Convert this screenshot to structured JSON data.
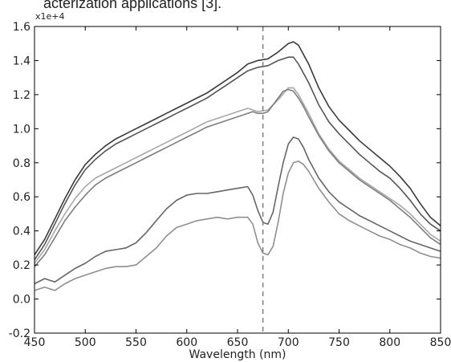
{
  "caption_fragment": "acterization applications [3].",
  "chart_data": {
    "type": "line",
    "title": "",
    "xlabel": "Wavelength (nm)",
    "ylabel": "",
    "y_offset_label": "x1e+4",
    "xlim": [
      450,
      850
    ],
    "ylim": [
      -0.2,
      1.6
    ],
    "x_ticks": [
      "450",
      "500",
      "550",
      "600",
      "650",
      "700",
      "750",
      "800",
      "850"
    ],
    "y_ticks": [
      "-0.2",
      "0.0",
      "0.2",
      "0.4",
      "0.6",
      "0.8",
      "1.0",
      "1.2",
      "1.4",
      "1.6"
    ],
    "vline": 675,
    "series": [
      {
        "color": "#3a3a3a",
        "x": [
          450,
          460,
          470,
          480,
          490,
          500,
          510,
          520,
          530,
          540,
          550,
          560,
          570,
          580,
          590,
          600,
          610,
          620,
          630,
          640,
          650,
          660,
          670,
          680,
          690,
          700,
          705,
          710,
          720,
          730,
          740,
          750,
          760,
          770,
          780,
          790,
          800,
          810,
          820,
          830,
          840,
          850
        ],
        "y": [
          0.26,
          0.35,
          0.47,
          0.59,
          0.7,
          0.79,
          0.85,
          0.9,
          0.94,
          0.97,
          1.0,
          1.03,
          1.06,
          1.09,
          1.12,
          1.15,
          1.18,
          1.21,
          1.25,
          1.29,
          1.33,
          1.38,
          1.4,
          1.41,
          1.45,
          1.5,
          1.51,
          1.49,
          1.38,
          1.24,
          1.13,
          1.05,
          0.99,
          0.93,
          0.88,
          0.83,
          0.78,
          0.72,
          0.65,
          0.56,
          0.48,
          0.43
        ]
      },
      {
        "color": "#555555",
        "x": [
          450,
          460,
          470,
          480,
          490,
          500,
          510,
          520,
          530,
          540,
          550,
          560,
          570,
          580,
          590,
          600,
          610,
          620,
          630,
          640,
          650,
          660,
          670,
          680,
          690,
          700,
          705,
          710,
          720,
          730,
          740,
          750,
          760,
          770,
          780,
          790,
          800,
          810,
          820,
          830,
          840,
          850
        ],
        "y": [
          0.23,
          0.32,
          0.44,
          0.56,
          0.67,
          0.76,
          0.82,
          0.87,
          0.91,
          0.94,
          0.97,
          1.0,
          1.03,
          1.06,
          1.09,
          1.12,
          1.15,
          1.18,
          1.22,
          1.26,
          1.3,
          1.34,
          1.36,
          1.37,
          1.4,
          1.42,
          1.42,
          1.38,
          1.27,
          1.14,
          1.04,
          0.97,
          0.91,
          0.85,
          0.8,
          0.75,
          0.71,
          0.65,
          0.58,
          0.5,
          0.44,
          0.4
        ]
      },
      {
        "color": "#a8a8a8",
        "x": [
          450,
          460,
          470,
          480,
          490,
          500,
          510,
          520,
          530,
          540,
          550,
          560,
          570,
          580,
          590,
          600,
          610,
          620,
          630,
          640,
          650,
          660,
          670,
          680,
          690,
          700,
          705,
          710,
          720,
          730,
          740,
          750,
          760,
          770,
          780,
          790,
          800,
          810,
          820,
          830,
          840,
          850
        ],
        "y": [
          0.21,
          0.29,
          0.4,
          0.5,
          0.59,
          0.66,
          0.71,
          0.74,
          0.77,
          0.8,
          0.83,
          0.86,
          0.89,
          0.92,
          0.95,
          0.98,
          1.01,
          1.04,
          1.06,
          1.08,
          1.1,
          1.12,
          1.1,
          1.11,
          1.17,
          1.24,
          1.24,
          1.2,
          1.09,
          0.97,
          0.88,
          0.81,
          0.76,
          0.71,
          0.67,
          0.63,
          0.59,
          0.55,
          0.5,
          0.44,
          0.38,
          0.34
        ]
      },
      {
        "color": "#7e7e7e",
        "x": [
          450,
          460,
          470,
          480,
          490,
          500,
          510,
          520,
          530,
          540,
          550,
          560,
          570,
          580,
          590,
          600,
          610,
          620,
          630,
          640,
          650,
          660,
          665,
          670,
          675,
          680,
          685,
          690,
          695,
          700,
          705,
          710,
          715,
          720,
          730,
          740,
          750,
          760,
          770,
          780,
          790,
          800,
          810,
          820,
          830,
          840,
          850
        ],
        "y": [
          0.19,
          0.26,
          0.36,
          0.46,
          0.54,
          0.61,
          0.67,
          0.71,
          0.74,
          0.77,
          0.8,
          0.83,
          0.86,
          0.89,
          0.92,
          0.95,
          0.98,
          1.01,
          1.03,
          1.05,
          1.07,
          1.09,
          1.1,
          1.09,
          1.09,
          1.1,
          1.14,
          1.18,
          1.22,
          1.23,
          1.22,
          1.18,
          1.13,
          1.07,
          0.96,
          0.87,
          0.8,
          0.75,
          0.7,
          0.66,
          0.62,
          0.58,
          0.53,
          0.48,
          0.42,
          0.36,
          0.32
        ]
      },
      {
        "color": "#666666",
        "x": [
          450,
          460,
          470,
          480,
          490,
          500,
          510,
          520,
          530,
          540,
          550,
          560,
          570,
          580,
          590,
          600,
          610,
          620,
          630,
          640,
          650,
          660,
          665,
          670,
          675,
          680,
          685,
          690,
          695,
          700,
          705,
          710,
          715,
          720,
          730,
          740,
          750,
          760,
          770,
          780,
          790,
          800,
          810,
          820,
          830,
          840,
          850
        ],
        "y": [
          0.09,
          0.12,
          0.1,
          0.14,
          0.18,
          0.21,
          0.25,
          0.28,
          0.29,
          0.3,
          0.33,
          0.39,
          0.46,
          0.53,
          0.58,
          0.61,
          0.62,
          0.62,
          0.63,
          0.64,
          0.65,
          0.66,
          0.61,
          0.52,
          0.45,
          0.44,
          0.51,
          0.66,
          0.8,
          0.91,
          0.95,
          0.94,
          0.89,
          0.82,
          0.71,
          0.63,
          0.57,
          0.53,
          0.49,
          0.46,
          0.43,
          0.4,
          0.37,
          0.34,
          0.32,
          0.3,
          0.28
        ]
      },
      {
        "color": "#8f8f8f",
        "x": [
          450,
          460,
          470,
          480,
          490,
          500,
          510,
          520,
          530,
          540,
          550,
          560,
          570,
          580,
          590,
          600,
          610,
          620,
          630,
          640,
          650,
          660,
          665,
          670,
          675,
          680,
          685,
          690,
          695,
          700,
          705,
          710,
          715,
          720,
          730,
          740,
          750,
          760,
          770,
          780,
          790,
          800,
          810,
          820,
          830,
          840,
          850
        ],
        "y": [
          0.05,
          0.07,
          0.05,
          0.09,
          0.12,
          0.14,
          0.16,
          0.18,
          0.19,
          0.19,
          0.2,
          0.25,
          0.3,
          0.37,
          0.42,
          0.44,
          0.46,
          0.47,
          0.48,
          0.47,
          0.48,
          0.48,
          0.44,
          0.33,
          0.27,
          0.26,
          0.31,
          0.45,
          0.62,
          0.74,
          0.8,
          0.81,
          0.79,
          0.75,
          0.65,
          0.57,
          0.5,
          0.46,
          0.43,
          0.4,
          0.37,
          0.35,
          0.32,
          0.3,
          0.27,
          0.25,
          0.24
        ]
      }
    ],
    "grid": false,
    "legend": "none"
  }
}
